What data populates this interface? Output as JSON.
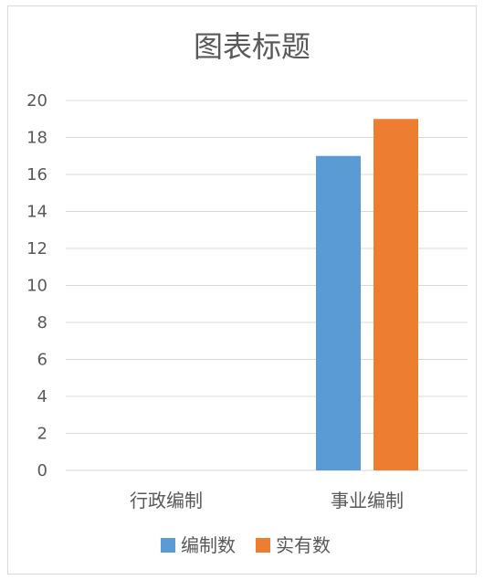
{
  "chart_data": {
    "type": "bar",
    "title": "图表标题",
    "categories": [
      "行政编制",
      "事业编制"
    ],
    "series": [
      {
        "name": "编制数",
        "values": [
          0,
          17
        ],
        "color": "#5b9bd5"
      },
      {
        "name": "实有数",
        "values": [
          0,
          19
        ],
        "color": "#ed7d31"
      }
    ],
    "ylim": [
      0,
      20
    ],
    "yticks": [
      0,
      2,
      4,
      6,
      8,
      10,
      12,
      14,
      16,
      18,
      20
    ],
    "grid": true,
    "legend_position": "bottom",
    "gridline_color": "#d9d9d9",
    "text_color": "#595959"
  }
}
